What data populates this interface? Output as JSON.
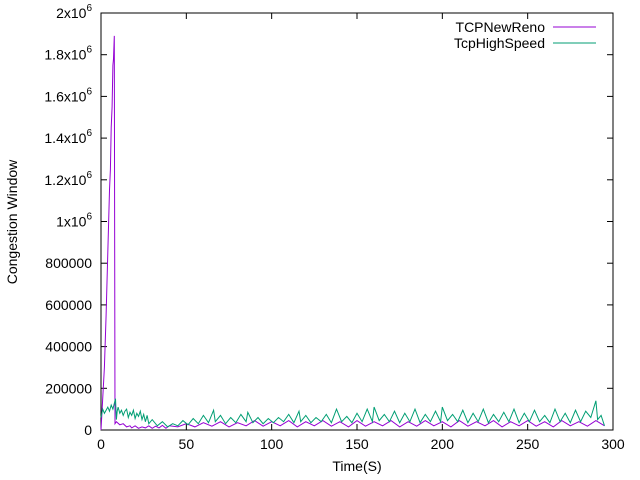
{
  "chart_data": {
    "type": "line",
    "title": "",
    "xlabel": "Time(S)",
    "ylabel": "Congestion Window",
    "xlim": [
      0,
      300
    ],
    "ylim": [
      0,
      2000000
    ],
    "grid": false,
    "legend_position": "top-right",
    "x_ticks": [
      {
        "value": 0,
        "label": "0"
      },
      {
        "value": 50,
        "label": "50"
      },
      {
        "value": 100,
        "label": "100"
      },
      {
        "value": 150,
        "label": "150"
      },
      {
        "value": 200,
        "label": "200"
      },
      {
        "value": 250,
        "label": "250"
      },
      {
        "value": 300,
        "label": "300"
      }
    ],
    "y_ticks": [
      {
        "value": 0,
        "label": "0"
      },
      {
        "value": 200000,
        "label": "200000"
      },
      {
        "value": 400000,
        "label": "400000"
      },
      {
        "value": 600000,
        "label": "600000"
      },
      {
        "value": 800000,
        "label": "800000"
      },
      {
        "value": 1000000,
        "label": "1x10",
        "exp": "6"
      },
      {
        "value": 1200000,
        "label": "1.2x10",
        "exp": "6"
      },
      {
        "value": 1400000,
        "label": "1.4x10",
        "exp": "6"
      },
      {
        "value": 1600000,
        "label": "1.6x10",
        "exp": "6"
      },
      {
        "value": 1800000,
        "label": "1.8x10",
        "exp": "6"
      },
      {
        "value": 2000000,
        "label": "2x10",
        "exp": "6"
      }
    ],
    "series": [
      {
        "name": "TCPNewReno",
        "color": "#9400d3",
        "x": [
          0,
          1,
          2,
          3,
          4,
          5,
          5.5,
          6,
          6.5,
          7,
          7.3,
          7.8,
          8.2,
          9,
          11,
          13,
          15,
          17,
          18,
          20,
          22,
          24,
          26,
          28,
          30,
          32,
          34,
          36,
          38,
          40,
          45,
          50,
          55,
          60,
          65,
          70,
          75,
          80,
          85,
          90,
          95,
          100,
          105,
          110,
          115,
          120,
          125,
          130,
          135,
          140,
          145,
          150,
          155,
          160,
          165,
          170,
          175,
          180,
          185,
          190,
          195,
          200,
          205,
          210,
          215,
          220,
          225,
          230,
          235,
          240,
          245,
          250,
          255,
          260,
          265,
          270,
          275,
          280,
          285,
          290,
          295
        ],
        "y": [
          0,
          150000,
          300000,
          550000,
          850000,
          1150000,
          1250000,
          1450000,
          1550000,
          1750000,
          1780000,
          1890000,
          30000,
          40000,
          25000,
          30000,
          15000,
          20000,
          10000,
          20000,
          8000,
          15000,
          10000,
          20000,
          8000,
          18000,
          10000,
          22000,
          8000,
          20000,
          15000,
          30000,
          15000,
          35000,
          18000,
          40000,
          15000,
          35000,
          20000,
          45000,
          18000,
          40000,
          20000,
          45000,
          15000,
          40000,
          20000,
          45000,
          18000,
          40000,
          15000,
          45000,
          18000,
          40000,
          20000,
          45000,
          15000,
          40000,
          18000,
          45000,
          20000,
          40000,
          15000,
          45000,
          18000,
          40000,
          20000,
          45000,
          15000,
          40000,
          20000,
          45000,
          18000,
          40000,
          15000,
          45000,
          20000,
          40000,
          18000,
          45000,
          20000
        ]
      },
      {
        "name": "TcpHighSpeed",
        "color": "#009e73",
        "x": [
          0,
          1,
          2,
          3,
          4,
          5,
          6,
          7,
          8,
          8.5,
          9,
          9.5,
          10,
          11,
          12,
          13,
          14,
          15,
          16,
          17,
          18,
          19,
          20,
          21,
          22,
          23,
          24,
          25,
          26,
          27,
          28,
          30,
          33,
          36,
          39,
          42,
          45,
          48,
          51,
          54,
          57,
          60,
          63,
          66,
          67,
          70,
          73,
          76,
          79,
          82,
          85,
          86,
          89,
          92,
          95,
          98,
          101,
          104,
          107,
          110,
          113,
          116,
          117,
          120,
          123,
          126,
          129,
          132,
          135,
          138,
          141,
          144,
          147,
          150,
          153,
          156,
          159,
          160,
          163,
          166,
          169,
          172,
          175,
          178,
          181,
          184,
          187,
          190,
          193,
          196,
          199,
          200,
          203,
          206,
          209,
          212,
          215,
          218,
          221,
          224,
          227,
          230,
          233,
          236,
          239,
          242,
          245,
          248,
          251,
          254,
          257,
          260,
          263,
          266,
          269,
          272,
          275,
          278,
          281,
          284,
          287,
          290,
          291,
          293,
          295
        ],
        "y": [
          60000,
          100000,
          80000,
          95000,
          110000,
          90000,
          120000,
          100000,
          135000,
          150000,
          50000,
          90000,
          110000,
          80000,
          95000,
          70000,
          90000,
          100000,
          60000,
          85000,
          70000,
          95000,
          55000,
          80000,
          65000,
          90000,
          50000,
          75000,
          40000,
          70000,
          30000,
          50000,
          20000,
          40000,
          15000,
          30000,
          20000,
          45000,
          25000,
          55000,
          30000,
          70000,
          35000,
          95000,
          40000,
          70000,
          30000,
          60000,
          35000,
          75000,
          40000,
          85000,
          35000,
          60000,
          30000,
          55000,
          35000,
          60000,
          40000,
          75000,
          35000,
          90000,
          40000,
          70000,
          35000,
          60000,
          40000,
          75000,
          35000,
          100000,
          40000,
          65000,
          35000,
          80000,
          40000,
          100000,
          40000,
          110000,
          45000,
          75000,
          40000,
          90000,
          35000,
          80000,
          40000,
          100000,
          35000,
          75000,
          40000,
          90000,
          40000,
          110000,
          45000,
          75000,
          40000,
          95000,
          35000,
          80000,
          40000,
          100000,
          35000,
          75000,
          40000,
          85000,
          40000,
          100000,
          35000,
          80000,
          40000,
          95000,
          40000,
          70000,
          35000,
          100000,
          40000,
          80000,
          35000,
          95000,
          40000,
          90000,
          60000,
          140000,
          50000,
          70000,
          20000
        ]
      }
    ]
  }
}
